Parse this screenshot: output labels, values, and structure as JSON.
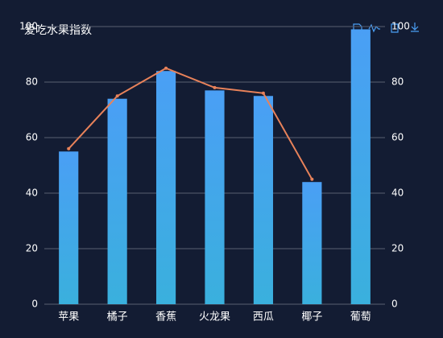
{
  "chart_data": {
    "type": "bar-line",
    "title": "爱吃水果指数",
    "categories": [
      "苹果",
      "橘子",
      "香蕉",
      "火龙果",
      "西瓜",
      "椰子",
      "葡萄"
    ],
    "series": [
      {
        "type": "bar",
        "color": "#4a9ff5",
        "values": [
          55,
          74,
          84,
          77,
          75,
          44,
          99
        ]
      },
      {
        "type": "line",
        "color": "#e8825a",
        "axis": "y2",
        "values": [
          56,
          75,
          85,
          78,
          76,
          45,
          null
        ]
      }
    ],
    "ylim": [
      0,
      100
    ],
    "yticks": [
      0,
      20,
      40,
      60,
      80,
      100
    ],
    "y2lim": [
      0,
      100
    ],
    "y2ticks": [
      0,
      20,
      40,
      60,
      80,
      100
    ],
    "grid": true
  }
}
